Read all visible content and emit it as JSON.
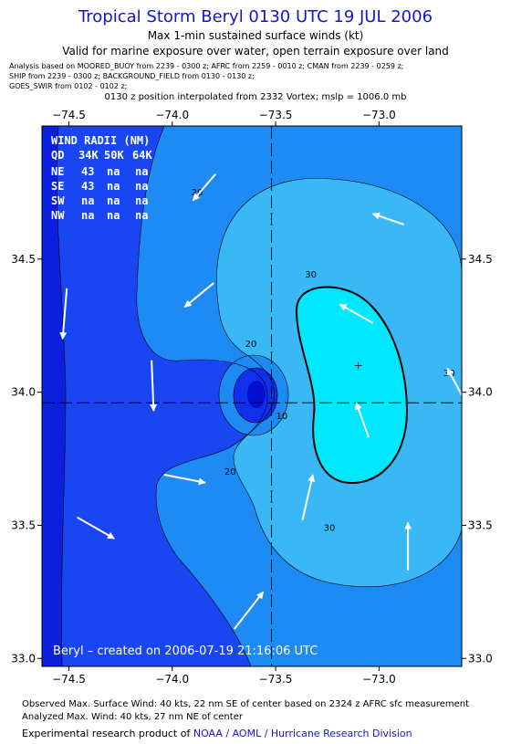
{
  "header": {
    "title": "Tropical Storm Beryl 0130 UTC 19 JUL 2006",
    "subtitle1": "Max 1-min sustained surface winds (kt)",
    "subtitle2": "Valid for marine exposure over water, open terrain exposure over land",
    "source_lines": [
      "Analysis based on  MOORED_BUOY from 2239 - 0300 z;  AFRC from 2259 - 0010 z;  CMAN from 2239 - 0259 z;",
      "SHIP from 2239 - 0300 z;  BACKGROUND_FIELD from 0130 - 0130 z;",
      "GOES_SWIR from 0102 - 0102 z;"
    ],
    "interpolation": "0130 z position interpolated from 2332 Vortex; mslp = 1006.0 mb"
  },
  "map": {
    "lon_range": [
      -74.63,
      -72.6
    ],
    "lat_range": [
      32.97,
      35.0
    ],
    "lon_ticks": [
      -74.5,
      -74.0,
      -73.5,
      -73.0
    ],
    "lat_ticks": [
      33.0,
      33.5,
      34.0,
      34.5
    ],
    "lon_tick_labels": [
      "−74.5",
      "−74.0",
      "−73.5",
      "−73.0"
    ],
    "lat_tick_labels": [
      "33.0",
      "33.5",
      "34.0",
      "34.5"
    ],
    "center": {
      "lon": -73.52,
      "lat": 33.96
    },
    "max_wind_marker": {
      "lon": -73.1,
      "lat": 34.1
    },
    "contour_labels": [
      {
        "text": "20",
        "lon": -73.88,
        "lat": 34.74
      },
      {
        "text": "30",
        "lon": -73.33,
        "lat": 34.43
      },
      {
        "text": "20",
        "lon": -73.62,
        "lat": 34.17
      },
      {
        "text": "10",
        "lon": -73.47,
        "lat": 33.9
      },
      {
        "text": "20",
        "lon": -73.72,
        "lat": 33.69
      },
      {
        "text": "30",
        "lon": -73.24,
        "lat": 33.48
      },
      {
        "text": "30",
        "lon": -72.66,
        "lat": 34.06
      }
    ],
    "colors": {
      "outer": "#1a46f2",
      "band_10": "#0f30ee",
      "band_20": "#1e8af4",
      "band_30": "#3ab8f6",
      "band_40": "#00e8ff",
      "edge_dark": "#0a20dd",
      "eye": "#050fd0"
    },
    "wind_vectors": [
      {
        "from": [
          -73.79,
          34.82
        ],
        "to": [
          -73.9,
          34.72
        ]
      },
      {
        "from": [
          -72.88,
          34.63
        ],
        "to": [
          -73.03,
          34.67
        ]
      },
      {
        "from": [
          -73.8,
          34.41
        ],
        "to": [
          -73.94,
          34.32
        ]
      },
      {
        "from": [
          -74.51,
          34.39
        ],
        "to": [
          -74.53,
          34.2
        ]
      },
      {
        "from": [
          -73.03,
          34.26
        ],
        "to": [
          -73.19,
          34.33
        ]
      },
      {
        "from": [
          -74.1,
          34.12
        ],
        "to": [
          -74.09,
          33.93
        ]
      },
      {
        "from": [
          -73.05,
          33.83
        ],
        "to": [
          -73.11,
          33.96
        ]
      },
      {
        "from": [
          -74.04,
          33.69
        ],
        "to": [
          -73.84,
          33.66
        ]
      },
      {
        "from": [
          -73.37,
          33.52
        ],
        "to": [
          -73.32,
          33.69
        ]
      },
      {
        "from": [
          -74.46,
          33.53
        ],
        "to": [
          -74.28,
          33.45
        ]
      },
      {
        "from": [
          -72.86,
          33.33
        ],
        "to": [
          -72.86,
          33.51
        ]
      },
      {
        "from": [
          -73.7,
          33.11
        ],
        "to": [
          -73.56,
          33.25
        ]
      },
      {
        "from": [
          -72.6,
          33.99
        ],
        "to": [
          -72.67,
          34.09
        ]
      }
    ],
    "wind_radii_table": {
      "title": "WIND RADII (NM)",
      "headers": [
        "QD",
        "34K",
        "50K",
        "64K"
      ],
      "rows": [
        [
          "NE",
          "43",
          "na",
          "na"
        ],
        [
          "SE",
          "43",
          "na",
          "na"
        ],
        [
          "SW",
          "na",
          "na",
          "na"
        ],
        [
          "NW",
          "na",
          "na",
          "na"
        ]
      ]
    },
    "created_text": "Beryl – created on 2006-07-19 21:16:06 UTC"
  },
  "footer": {
    "observed": "Observed Max. Surface Wind: 40 kts, 22 nm SE of center based on 2324 z AFRC sfc measurement",
    "analyzed": "Analyzed Max. Wind: 40 kts, 27 nm NE of center",
    "product_prefix": "Experimental research product of ",
    "product_link": "NOAA / AOML / Hurricane Research Division"
  }
}
